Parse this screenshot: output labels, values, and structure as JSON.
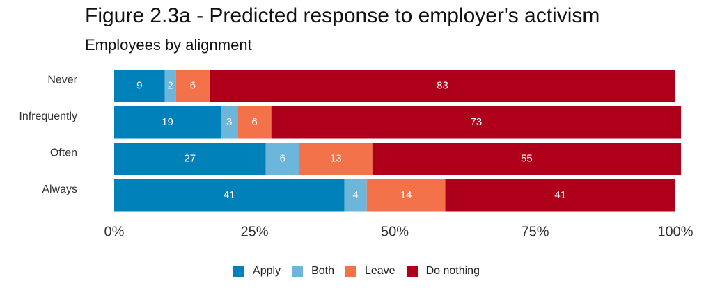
{
  "chart_data": {
    "type": "bar",
    "orientation": "horizontal",
    "stacked": true,
    "title": "Figure 2.3a - Predicted response to employer's activism",
    "subtitle": "Employees by alignment",
    "categories": [
      "Never",
      "Infrequently",
      "Often",
      "Always"
    ],
    "series": [
      {
        "name": "Apply",
        "color": "#0081BA",
        "values": [
          9,
          19,
          27,
          41
        ]
      },
      {
        "name": "Both",
        "color": "#6BB6DA",
        "values": [
          2,
          3,
          6,
          4
        ]
      },
      {
        "name": "Leave",
        "color": "#F37249",
        "values": [
          6,
          6,
          13,
          14
        ]
      },
      {
        "name": "Do nothing",
        "color": "#AF001B",
        "values": [
          83,
          73,
          55,
          41
        ]
      }
    ],
    "xlim": [
      0,
      100
    ],
    "x_ticks": [
      "0%",
      "25%",
      "50%",
      "75%",
      "100%"
    ],
    "grid": false,
    "legend_position": "bottom"
  }
}
